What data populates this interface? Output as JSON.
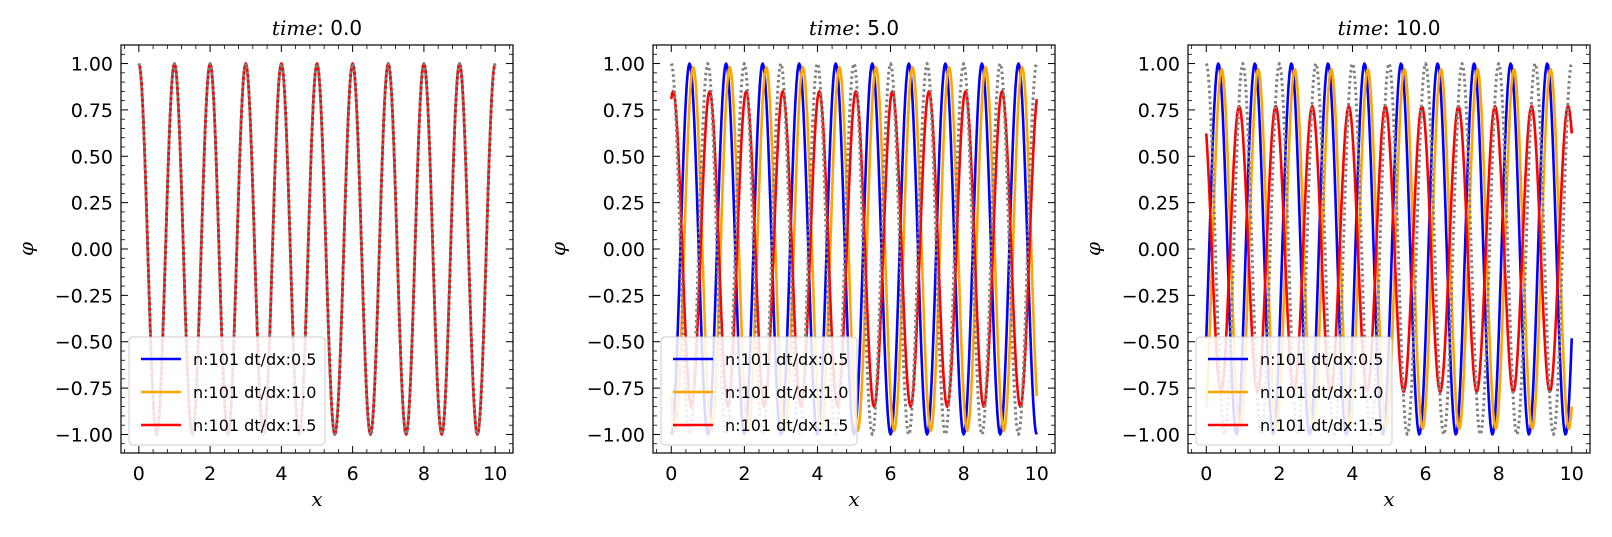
{
  "chart_data": [
    {
      "type": "line",
      "title": "time : 0.0",
      "xlabel": "x",
      "ylabel": "φ",
      "xlim": [
        -0.5,
        10.5
      ],
      "ylim": [
        -1.1,
        1.1
      ],
      "xticks": [
        0,
        2,
        4,
        6,
        8,
        10
      ],
      "yticks": [
        -1.0,
        -0.75,
        -0.5,
        -0.25,
        0.0,
        0.25,
        0.5,
        0.75,
        1.0
      ],
      "ytick_labels": [
        "−1.00",
        "−0.75",
        "−0.50",
        "−0.25",
        "0.00",
        "0.25",
        "0.50",
        "0.75",
        "1.00"
      ],
      "legend_position": "lower left",
      "exact_series": {
        "name": "",
        "color": "#808080",
        "style": "dotted",
        "frequency": 1.0,
        "phase": 0.0,
        "amplitude": 1.0
      },
      "series": [
        {
          "name": "n:101 dt/dx:0.5",
          "color": "#0000ff",
          "amplitude": 1.0,
          "frequency": 1.0,
          "phase": 0.0
        },
        {
          "name": "n:101 dt/dx:1.0",
          "color": "#ffa500",
          "amplitude": 1.0,
          "frequency": 1.0,
          "phase": 0.0
        },
        {
          "name": "n:101 dt/dx:1.5",
          "color": "#ff0000",
          "amplitude": 1.0,
          "frequency": 1.0,
          "phase": 0.0
        }
      ]
    },
    {
      "type": "line",
      "title": "time : 5.0",
      "xlabel": "x",
      "ylabel": "φ",
      "xlim": [
        -0.5,
        10.5
      ],
      "ylim": [
        -1.1,
        1.1
      ],
      "xticks": [
        0,
        2,
        4,
        6,
        8,
        10
      ],
      "yticks": [
        -1.0,
        -0.75,
        -0.5,
        -0.25,
        0.0,
        0.25,
        0.5,
        0.75,
        1.0
      ],
      "ytick_labels": [
        "−1.00",
        "−0.75",
        "−0.50",
        "−0.25",
        "0.00",
        "0.25",
        "0.50",
        "0.75",
        "1.00"
      ],
      "legend_position": "lower left",
      "exact_series": {
        "name": "",
        "color": "#808080",
        "style": "dotted",
        "frequency": 1.0,
        "phase": 0.0,
        "amplitude": 1.0
      },
      "series": [
        {
          "name": "n:101 dt/dx:0.5",
          "color": "#0000ff",
          "amplitude": 1.0,
          "frequency": 1.0,
          "phase": -0.5
        },
        {
          "name": "n:101 dt/dx:1.0",
          "color": "#ffa500",
          "amplitude": 0.98,
          "frequency": 1.0,
          "phase": -0.6
        },
        {
          "name": "n:101 dt/dx:1.5",
          "color": "#ff0000",
          "amplitude": 0.85,
          "frequency": 1.0,
          "phase": -1.05
        }
      ]
    },
    {
      "type": "line",
      "title": "time : 10.0",
      "xlabel": "x",
      "ylabel": "φ",
      "xlim": [
        -0.5,
        10.5
      ],
      "ylim": [
        -1.1,
        1.1
      ],
      "xticks": [
        0,
        2,
        4,
        6,
        8,
        10
      ],
      "yticks": [
        -1.0,
        -0.75,
        -0.5,
        -0.25,
        0.0,
        0.25,
        0.5,
        0.75,
        1.0
      ],
      "ytick_labels": [
        "−1.00",
        "−0.75",
        "−0.50",
        "−0.25",
        "0.00",
        "0.25",
        "0.50",
        "0.75",
        "1.00"
      ],
      "legend_position": "lower left",
      "exact_series": {
        "name": "",
        "color": "#808080",
        "style": "dotted",
        "frequency": 1.0,
        "phase": 0.0,
        "amplitude": 1.0
      },
      "series": [
        {
          "name": "n:101 dt/dx:0.5",
          "color": "#0000ff",
          "amplitude": 1.0,
          "frequency": 1.0,
          "phase": -1.33
        },
        {
          "name": "n:101 dt/dx:1.0",
          "color": "#ffa500",
          "amplitude": 0.97,
          "frequency": 1.0,
          "phase": -1.42
        },
        {
          "name": "n:101 dt/dx:1.5",
          "color": "#ff0000",
          "amplitude": 0.77,
          "frequency": 1.0,
          "phase": -1.9
        }
      ]
    }
  ]
}
